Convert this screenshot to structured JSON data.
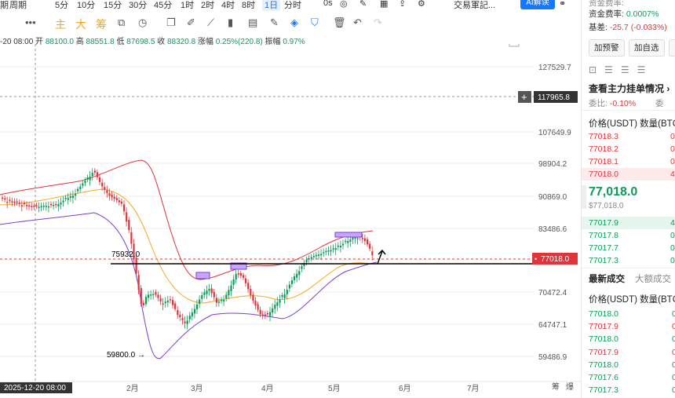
{
  "toolbar_top": {
    "items": [
      "期",
      "周期",
      "5分",
      "10分",
      "15分",
      "30分",
      "45分",
      "1时",
      "2时",
      "4时",
      "8时",
      "1日",
      "分时",
      "0s"
    ],
    "active": "1日",
    "exchange_label": "交易軍記...",
    "ai_label": "AI解读"
  },
  "toolbar_tools": {
    "more": "•••",
    "indicators": [
      "主",
      "大",
      "筹"
    ]
  },
  "ohlc": {
    "date": "-20 08:00",
    "open_label": "开",
    "open": "88100.0",
    "high_label": "高",
    "high": "88551.8",
    "low_label": "低",
    "low": "87698.5",
    "close_label": "收",
    "close": "88320.8",
    "change_label": "涨幅",
    "change": "0.25%(220.8)",
    "amp_label": "振幅",
    "amp": "0.97%"
  },
  "chart_data": {
    "type": "candlestick",
    "y_ticks": [
      "127529.7",
      "107649.9",
      "98904.2",
      "90869.0",
      "83486.6",
      "70472.4",
      "64747.1",
      "59486.9"
    ],
    "x_ticks": [
      "2月",
      "3月",
      "4月",
      "5月",
      "6月",
      "7月"
    ],
    "crosshair_price": "117965.8",
    "crosshair_date": "2025-12-20 08:00",
    "last_price": "77018.0",
    "annotation_high": "75932.0",
    "annotation_low": "59800.0",
    "bottom_right": [
      "筹",
      "爆"
    ],
    "colors": {
      "up": "#0d9b5a",
      "down": "#e0343b",
      "band_upper": "#e0343b",
      "band_lower": "#7b3fd0",
      "mid": "#f5a623"
    }
  },
  "sidebar": {
    "top_cut": "资金费率:",
    "funding_label": "资金费率:",
    "funding_value": "0.0007%",
    "basis_label": "基差:",
    "basis_value": "-25.7 (-0.033%)",
    "btn_alert": "加预警",
    "btn_fav": "加自选",
    "orderbook_title": "查看主力挂单情况",
    "ratio_label": "委比:",
    "ratio_value": "-0.10%",
    "ratio_cut": "委",
    "col_price": "价格(USDT)",
    "col_qty": "数量(BTC",
    "asks": [
      {
        "price": "77018.3",
        "qty": "0."
      },
      {
        "price": "77018.2",
        "qty": "0."
      },
      {
        "price": "77018.1",
        "qty": "0."
      },
      {
        "price": "77018.0",
        "qty": "4."
      }
    ],
    "mid_price": "77,018.0",
    "mid_sub": "$77,018.0",
    "bids": [
      {
        "price": "77017.9",
        "qty": "4."
      },
      {
        "price": "77017.8",
        "qty": "0."
      },
      {
        "price": "77017.7",
        "qty": "0."
      },
      {
        "price": "77017.3",
        "qty": "0."
      }
    ],
    "tab_latest": "最新成交",
    "tab_big": "大额成交",
    "trades_col_price": "价格(USDT)",
    "trades_col_qty": "数量(BTC",
    "trades": [
      {
        "price": "77018.0",
        "side": "buy",
        "qty": "0"
      },
      {
        "price": "77017.9",
        "side": "sell",
        "qty": "0"
      },
      {
        "price": "77018.0",
        "side": "buy",
        "qty": "0"
      },
      {
        "price": "77017.9",
        "side": "sell",
        "qty": "0"
      },
      {
        "price": "77018.0",
        "side": "buy",
        "qty": "0"
      },
      {
        "price": "77017.6",
        "side": "buy",
        "qty": "0"
      },
      {
        "price": "77017.3",
        "side": "buy",
        "qty": "0"
      }
    ]
  }
}
